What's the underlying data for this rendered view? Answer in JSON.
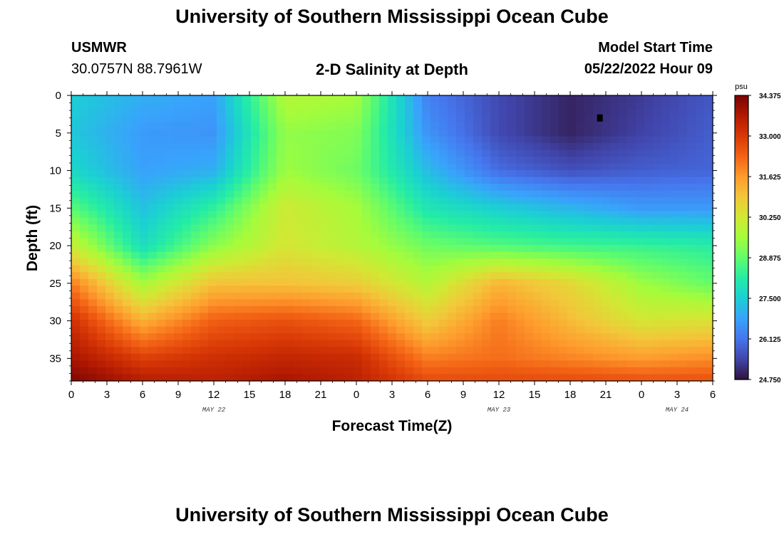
{
  "header": {
    "title": "University of Southern Mississippi Ocean Cube",
    "station": "USMWR",
    "coordinates": "30.0757N  88.7961W",
    "plot_title": "2-D Salinity at Depth",
    "model_label": "Model Start Time",
    "model_time": "05/22/2022 Hour 09"
  },
  "footer": {
    "title": "University of Southern Mississippi Ocean Cube"
  },
  "chart_data": {
    "type": "heatmap",
    "title": "2-D Salinity at Depth",
    "xlabel": "Forecast Time(Z)",
    "ylabel": "Depth (ft)",
    "x_tick_labels": [
      "0",
      "3",
      "6",
      "9",
      "12",
      "15",
      "18",
      "21",
      "0",
      "3",
      "6",
      "9",
      "12",
      "15",
      "18",
      "21",
      "0",
      "3",
      "6"
    ],
    "date_labels": [
      "MAY 22",
      "MAY 23",
      "MAY 24"
    ],
    "y_ticks": [
      0,
      5,
      10,
      15,
      20,
      25,
      30,
      35
    ],
    "ylim": [
      38,
      0
    ],
    "xlim_hours": [
      0,
      54
    ],
    "colorbar": {
      "unit": "psu",
      "min": 24.75,
      "max": 34.375,
      "tick_labels": [
        "34.375",
        "33.000",
        "31.625",
        "30.250",
        "28.875",
        "27.500",
        "26.125",
        "24.750"
      ],
      "tick_values": [
        34.375,
        33.0,
        31.625,
        30.25,
        28.875,
        27.5,
        26.125,
        24.75
      ],
      "palette": [
        "#30123b",
        "#4145ab",
        "#4675ed",
        "#39a2fc",
        "#1bcfd4",
        "#24eca6",
        "#61fc6c",
        "#a4fc3b",
        "#d1e834",
        "#f3c63a",
        "#fe9b2d",
        "#f36315",
        "#d93806",
        "#b11901",
        "#7a0403"
      ]
    },
    "depth_levels": [
      0,
      5,
      10,
      15,
      20,
      25,
      30,
      35,
      38
    ],
    "time_hours": [
      0,
      6,
      12,
      18,
      24,
      30,
      36,
      42,
      48,
      54
    ],
    "values": [
      [
        27.5,
        27.0,
        26.8,
        29.8,
        29.6,
        26.3,
        25.5,
        25.0,
        25.3,
        25.7
      ],
      [
        27.4,
        26.7,
        26.6,
        29.4,
        29.2,
        26.6,
        25.5,
        25.0,
        25.4,
        25.8
      ],
      [
        27.7,
        26.8,
        27.0,
        29.5,
        29.0,
        27.2,
        26.0,
        25.6,
        25.8,
        25.9
      ],
      [
        28.8,
        27.3,
        28.3,
        30.2,
        29.6,
        28.0,
        27.5,
        27.1,
        26.7,
        26.7
      ],
      [
        30.1,
        27.8,
        29.3,
        30.3,
        29.8,
        29.0,
        28.7,
        28.5,
        28.4,
        28.2
      ],
      [
        32.0,
        29.6,
        31.0,
        31.0,
        30.8,
        29.8,
        31.2,
        30.6,
        29.5,
        28.9
      ],
      [
        33.2,
        31.3,
        32.4,
        32.6,
        32.3,
        30.8,
        32.0,
        31.1,
        30.3,
        30.4
      ],
      [
        33.8,
        32.9,
        33.2,
        33.4,
        33.3,
        32.0,
        32.2,
        31.9,
        31.6,
        31.8
      ],
      [
        34.3,
        33.6,
        33.5,
        33.8,
        33.5,
        32.7,
        32.7,
        32.7,
        32.6,
        32.6
      ]
    ],
    "marker": {
      "hour": 44.5,
      "depth": 3
    }
  }
}
